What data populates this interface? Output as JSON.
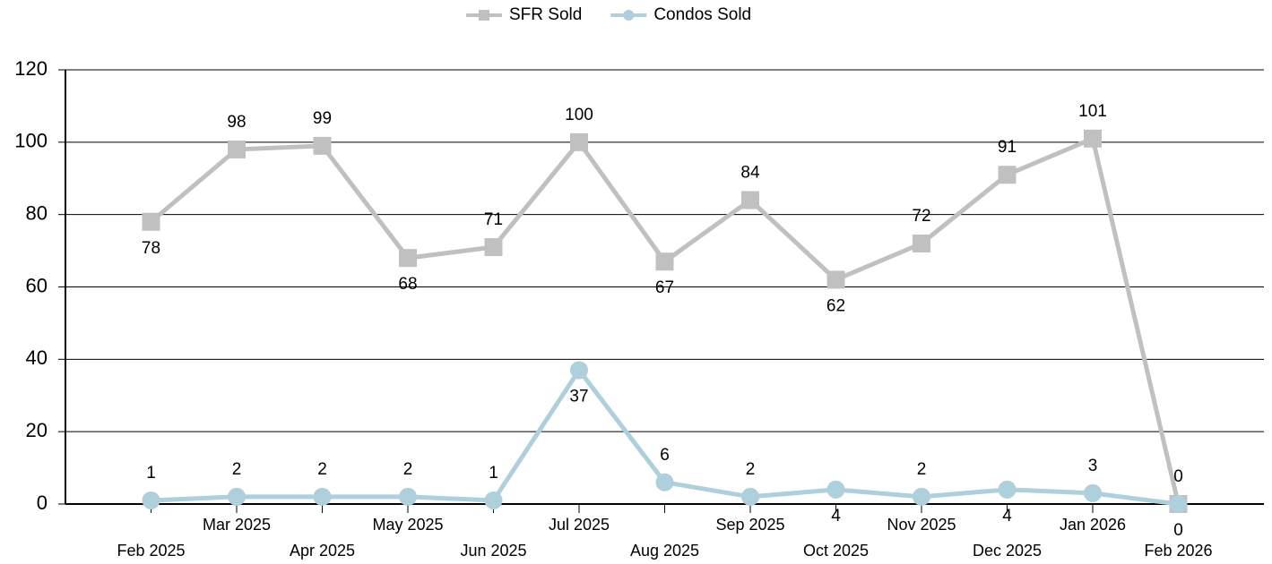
{
  "chart_data": {
    "type": "line",
    "categories": [
      "Feb 2025",
      "Mar 2025",
      "Apr 2025",
      "May 2025",
      "Jun 2025",
      "Jul 2025",
      "Aug 2025",
      "Sep 2025",
      "Oct 2025",
      "Nov 2025",
      "Dec 2025",
      "Jan 2026",
      "Feb 2026"
    ],
    "series": [
      {
        "name": "SFR Sold",
        "color": "#c0c0c0",
        "marker": "square",
        "values": [
          78,
          98,
          99,
          68,
          71,
          100,
          67,
          84,
          62,
          72,
          91,
          101,
          0
        ]
      },
      {
        "name": "Condos Sold",
        "color": "#aecfdc",
        "marker": "circle",
        "values": [
          1,
          2,
          2,
          2,
          1,
          37,
          6,
          2,
          4,
          2,
          4,
          3,
          0
        ]
      }
    ],
    "ylim": [
      0,
      120
    ],
    "yticks": [
      0,
      20,
      40,
      60,
      80,
      100,
      120
    ],
    "grid": true,
    "legend": "top"
  }
}
